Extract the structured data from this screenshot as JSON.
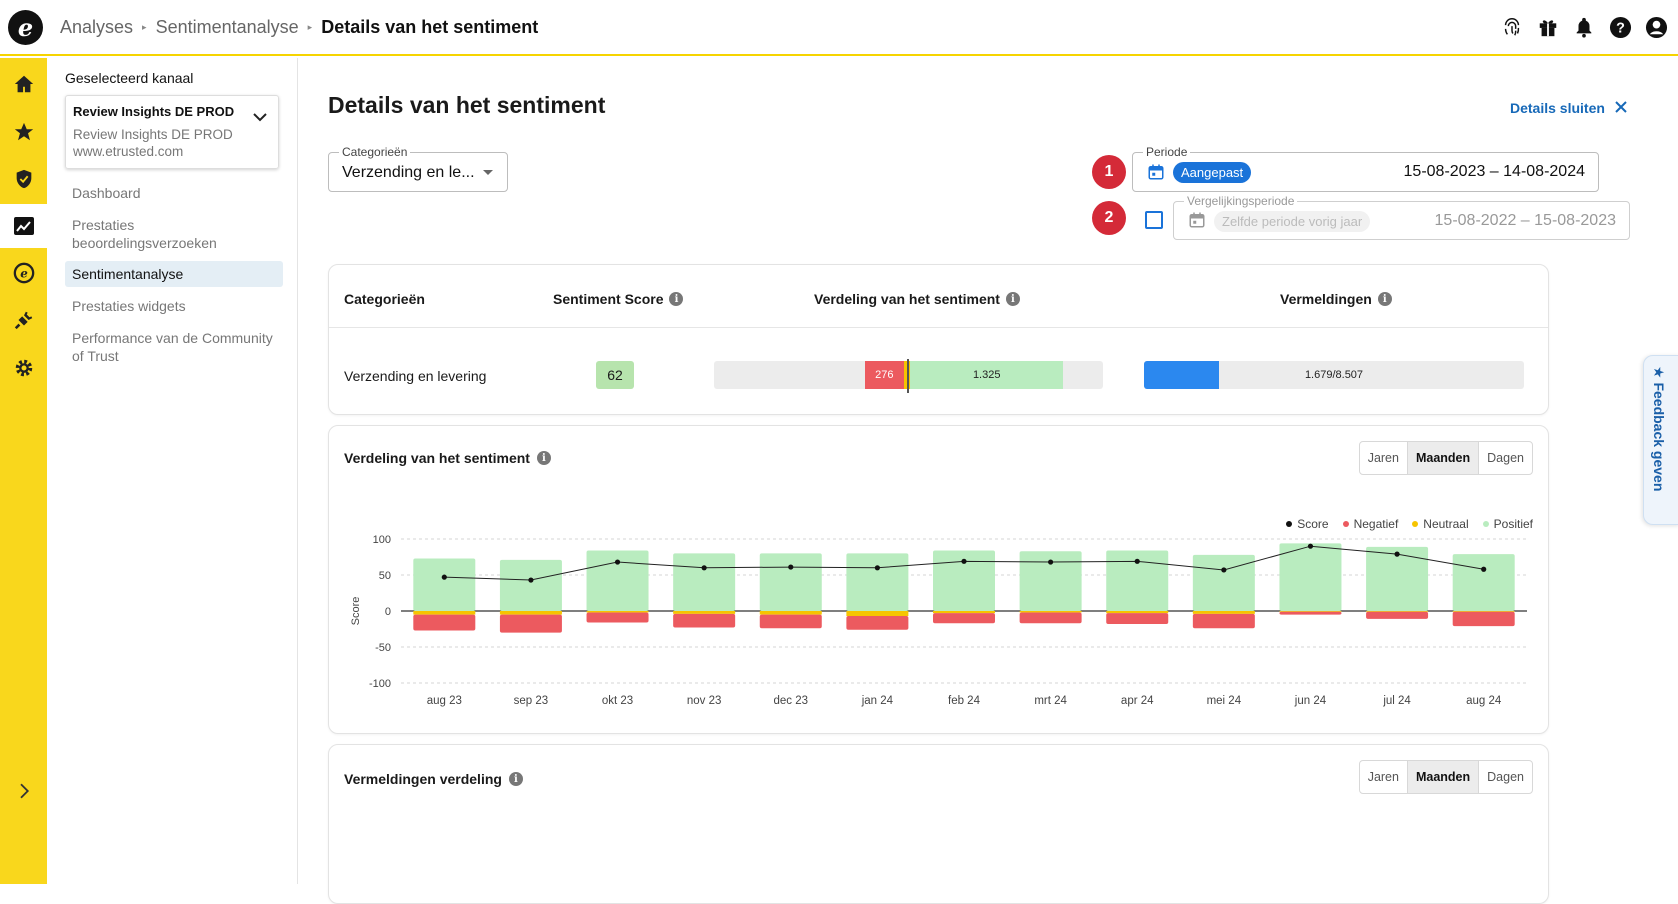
{
  "breadcrumb": [
    "Analyses",
    "Sentimentanalyse",
    "Details van het sentiment"
  ],
  "top_icons": [
    "fingerprint-icon",
    "gift-icon",
    "bell-icon",
    "help-icon",
    "account-icon"
  ],
  "rail_icons": [
    "home-icon",
    "star-icon",
    "shield-check-icon",
    "analytics-icon",
    "etrusted-coin-icon",
    "plug-icon",
    "gear-icon",
    "expand-chevron-icon"
  ],
  "subnav": {
    "label": "Geselecteerd kanaal",
    "channel_name": "Review Insights DE PROD",
    "channel_sub": "Review Insights DE PROD",
    "channel_url": "www.etrusted.com",
    "links": [
      "Dashboard",
      "Prestaties beoordelingsverzoeken",
      "Sentimentanalyse",
      "Prestaties widgets",
      "Performance van de Community of Trust"
    ],
    "active_index": 2
  },
  "page": {
    "title": "Details van het sentiment",
    "close_label": "Details sluiten"
  },
  "filters": {
    "category_label": "Categorieën",
    "category_value": "Verzending en le...",
    "step1": "1",
    "step2": "2",
    "period_label": "Periode",
    "period_chip": "Aangepast",
    "period_range": "15-08-2023 – 14-08-2024",
    "compare_label": "Vergelijkingsperiode",
    "compare_chip": "Zelfde periode vorig jaar",
    "compare_range": "15-08-2022 – 15-08-2023",
    "compare_checked": false
  },
  "table": {
    "headers": [
      "Categorieën",
      "Sentiment Score",
      "Verdeling van het sentiment",
      "Vermeldingen"
    ],
    "row": {
      "category": "Verzending en levering",
      "score": "62",
      "negative": "276",
      "positive": "1.325",
      "negative_share": 0.153,
      "neutral_share": 0.024,
      "positive_share": 0.823,
      "mentions": "1.679/8.507",
      "mentions_fraction": 0.197
    }
  },
  "sentiment_card": {
    "title": "Verdeling van het sentiment",
    "toggle": [
      "Jaren",
      "Maanden",
      "Dagen"
    ],
    "toggle_active": 1
  },
  "mentions_card": {
    "title": "Vermeldingen verdeling",
    "toggle": [
      "Jaren",
      "Maanden",
      "Dagen"
    ],
    "toggle_active": 1
  },
  "feedback_label": "★ Feedback geven",
  "colors": {
    "negative": "#ec5a5f",
    "neutral": "#f6c400",
    "positive": "#b9ecbf",
    "score": "#111111",
    "accent": "#1a73d9",
    "rail": "#f9d71c"
  },
  "chart_data": {
    "type": "bar",
    "ylabel": "Score",
    "ylim": [
      -100,
      100
    ],
    "yticks": [
      100,
      50,
      0,
      -50,
      -100
    ],
    "categories": [
      "aug 23",
      "sep 23",
      "okt 23",
      "nov 23",
      "dec 23",
      "jan 24",
      "feb 24",
      "mrt 24",
      "apr 24",
      "mei 24",
      "jun 24",
      "jul 24",
      "aug 24"
    ],
    "legend_position": "top-right",
    "grid": true,
    "series": [
      {
        "name": "Score",
        "kind": "line",
        "values": [
          47,
          43,
          68,
          60,
          61,
          60,
          69,
          68,
          69,
          57,
          90,
          79,
          58
        ]
      },
      {
        "name": "Negatief",
        "kind": "bar",
        "values": [
          -22,
          -25,
          -14,
          -19,
          -19,
          -19,
          -14,
          -15,
          -15,
          -20,
          -4,
          -10,
          -20
        ]
      },
      {
        "name": "Neutraal",
        "kind": "bar",
        "values": [
          -5,
          -5,
          -2,
          -4,
          -5,
          -7,
          -3,
          -2,
          -3,
          -4,
          -1,
          -1,
          -1
        ]
      },
      {
        "name": "Positief",
        "kind": "bar",
        "values": [
          73,
          71,
          84,
          80,
          80,
          80,
          84,
          83,
          84,
          78,
          94,
          89,
          79
        ]
      }
    ]
  }
}
